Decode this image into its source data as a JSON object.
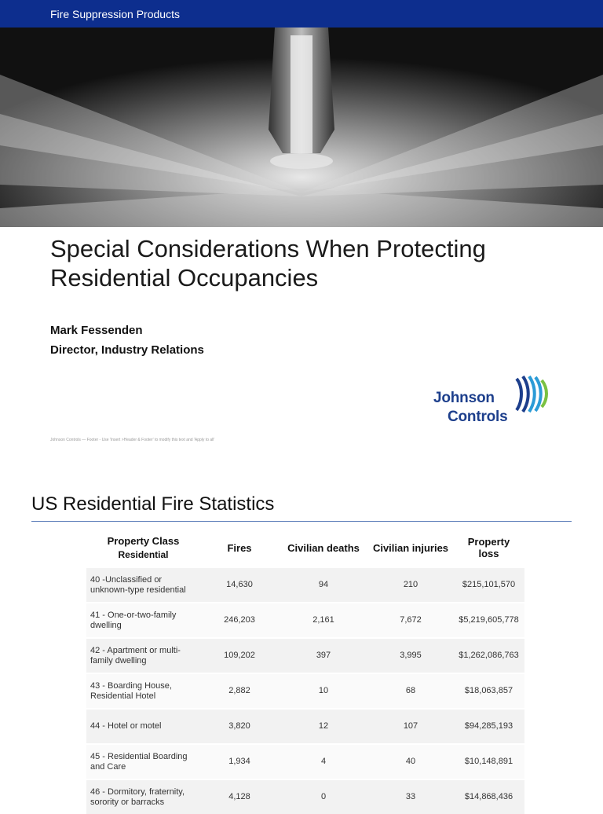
{
  "header": {
    "label": "Fire Suppression Products"
  },
  "cover": {
    "title": "Special Considerations When Protecting Residential Occupancies",
    "author_name": "Mark Fessenden",
    "author_role": "Director, Industry Relations",
    "footer_note": "Johnson Controls —    Footer - Use 'Insert >Header & Footer' to modify this text and 'Apply to all'",
    "logo": {
      "line1": "Johnson",
      "line2": "Controls",
      "colors": [
        "#1d3f8c",
        "#2b9bd6",
        "#7ac142"
      ]
    }
  },
  "stats_slide": {
    "title": "US Residential Fire Statistics",
    "columns": {
      "property_class": "Property Class",
      "property_sub": "Residential",
      "fires": "Fires",
      "deaths": "Civilian deaths",
      "injuries": "Civilian injuries",
      "loss": "Property loss"
    },
    "rows": [
      {
        "cls": "40 -Unclassified or unknown-type residential",
        "fires": "14,630",
        "deaths": "94",
        "injuries": "210",
        "loss": "$215,101,570"
      },
      {
        "cls": "41 - One-or-two-family dwelling",
        "fires": "246,203",
        "deaths": "2,161",
        "injuries": "7,672",
        "loss": "$5,219,605,778"
      },
      {
        "cls": "42 - Apartment or multi-family dwelling",
        "fires": "109,202",
        "deaths": "397",
        "injuries": "3,995",
        "loss": "$1,262,086,763"
      },
      {
        "cls": "43 - Boarding House, Residential Hotel",
        "fires": "2,882",
        "deaths": "10",
        "injuries": "68",
        "loss": "$18,063,857"
      },
      {
        "cls": "44 - Hotel or motel",
        "fires": "3,820",
        "deaths": "12",
        "injuries": "107",
        "loss": "$94,285,193"
      },
      {
        "cls": "45 - Residential Boarding and Care",
        "fires": "1,934",
        "deaths": "4",
        "injuries": "40",
        "loss": "$10,148,891"
      },
      {
        "cls": "46 - Dormitory, fraternity, sorority or barracks",
        "fires": "4,128",
        "deaths": "0",
        "injuries": "33",
        "loss": "$14,868,436"
      }
    ]
  }
}
